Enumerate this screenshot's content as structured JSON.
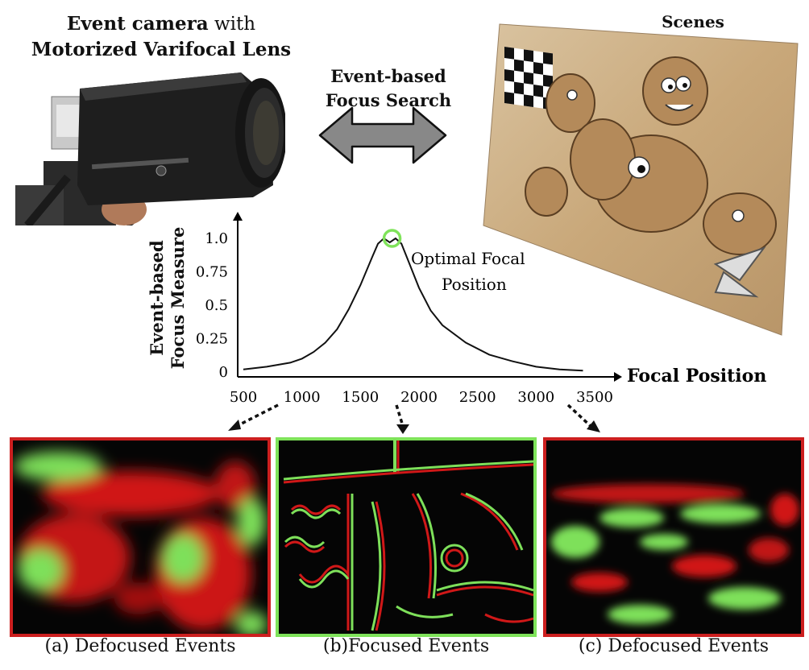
{
  "header": {
    "camera_title_bold1": "Event camera",
    "camera_title_plain": " with",
    "camera_title_bold2": "Motorized Varifocal Lens",
    "scenes_label": "Scenes",
    "search_label_line1": "Event-based",
    "search_label_line2": "Focus Search"
  },
  "chart_data": {
    "type": "line",
    "ylabel_line1": "Event-based",
    "ylabel_line2": "Focus Measure",
    "xlabel": "Focal Position",
    "xlim": [
      500,
      3500
    ],
    "ylim": [
      0,
      1.0
    ],
    "x_ticks": [
      "500",
      "1000",
      "1500",
      "2000",
      "2500",
      "3000",
      "3500"
    ],
    "y_ticks": [
      "0",
      "0.25",
      "0.5",
      "0.75",
      "1.0"
    ],
    "x": [
      500,
      700,
      900,
      1000,
      1100,
      1200,
      1300,
      1400,
      1500,
      1600,
      1650,
      1700,
      1750,
      1800,
      1850,
      1900,
      2000,
      2100,
      2200,
      2400,
      2600,
      2800,
      3000,
      3200,
      3400
    ],
    "y": [
      0.02,
      0.04,
      0.07,
      0.1,
      0.15,
      0.22,
      0.32,
      0.47,
      0.65,
      0.86,
      0.96,
      1.0,
      0.97,
      1.0,
      0.96,
      0.85,
      0.63,
      0.46,
      0.35,
      0.22,
      0.13,
      0.08,
      0.04,
      0.02,
      0.01
    ],
    "annotation_line1": "Optimal Focal",
    "annotation_line2": "Position",
    "optimal_x": 1770,
    "optimal_y": 1.0
  },
  "captions": {
    "a": "(a) Defocused Events",
    "b": "(b)Focused Events",
    "c": "(c) Defocused Events"
  },
  "colors": {
    "defocused_border": "#cc1f1f",
    "focused_border": "#7fe35a",
    "event_red": "#e01818",
    "event_green": "#7ee05a",
    "arrow_fill": "#888888"
  }
}
